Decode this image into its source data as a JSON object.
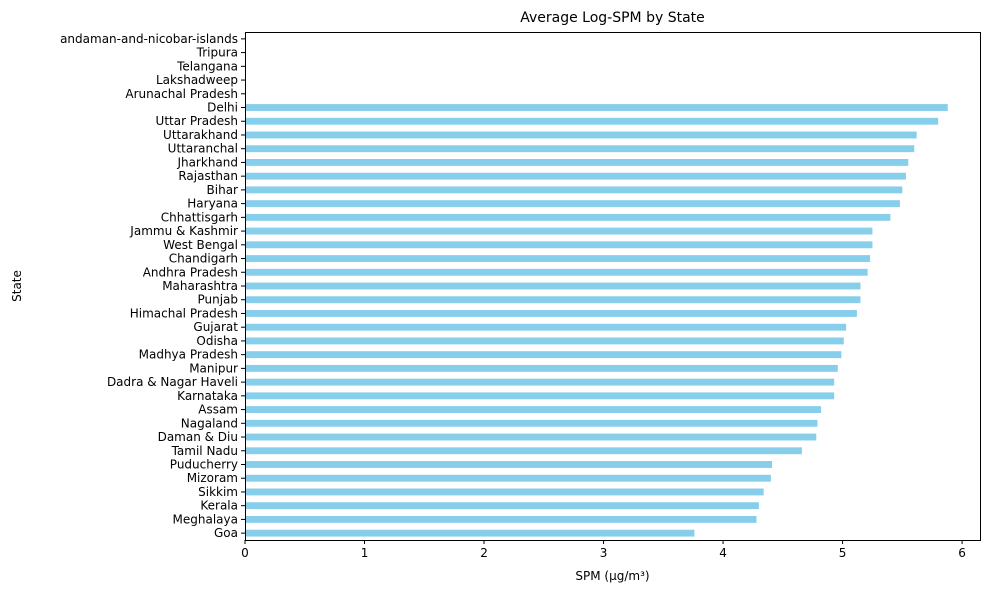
{
  "chart_data": {
    "type": "bar",
    "orientation": "horizontal",
    "title": "Average Log-SPM by State",
    "xlabel": "SPM (µg/m³)",
    "ylabel": "State",
    "xlim": [
      0,
      6.15
    ],
    "xticks": [
      "0",
      "1",
      "2",
      "3",
      "4",
      "5",
      "6"
    ],
    "bar_color": "#87ceeb",
    "grid": false,
    "categories": [
      "andaman-and-nicobar-islands",
      "Tripura",
      "Telangana",
      "Lakshadweep",
      "Arunachal Pradesh",
      "Delhi",
      "Uttar Pradesh",
      "Uttarakhand",
      "Uttaranchal",
      "Jharkhand",
      "Rajasthan",
      "Bihar",
      "Haryana",
      "Chhattisgarh",
      "Jammu & Kashmir",
      "West Bengal",
      "Chandigarh",
      "Andhra Pradesh",
      "Maharashtra",
      "Punjab",
      "Himachal Pradesh",
      "Gujarat",
      "Odisha",
      "Madhya Pradesh",
      "Manipur",
      "Dadra & Nagar Haveli",
      "Karnataka",
      "Assam",
      "Nagaland",
      "Daman & Diu",
      "Tamil Nadu",
      "Puducherry",
      "Mizoram",
      "Sikkim",
      "Kerala",
      "Meghalaya",
      "Goa"
    ],
    "values": [
      null,
      null,
      null,
      null,
      null,
      5.88,
      5.8,
      5.62,
      5.6,
      5.55,
      5.53,
      5.5,
      5.48,
      5.4,
      5.25,
      5.25,
      5.23,
      5.21,
      5.15,
      5.15,
      5.12,
      5.03,
      5.01,
      4.99,
      4.96,
      4.93,
      4.93,
      4.82,
      4.79,
      4.78,
      4.66,
      4.41,
      4.4,
      4.34,
      4.3,
      4.28,
      3.76
    ]
  }
}
